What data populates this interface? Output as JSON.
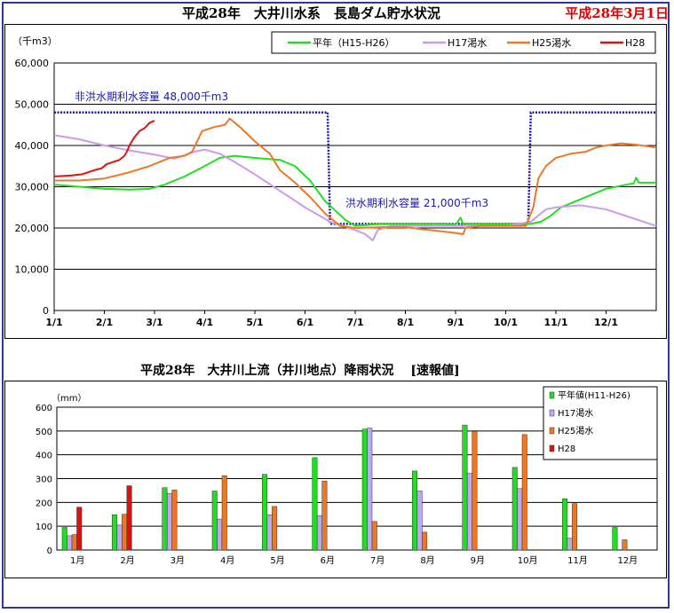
{
  "header": {
    "title": "平成28年　大井川水系　長島ダム貯水状況",
    "date": "平成28年3月1日",
    "title2": "平成28年　大井川上流（井川地点）降雨状況　 [速報値]"
  },
  "chart_data": [
    {
      "type": "line",
      "title": "平成28年　大井川水系　長島ダム貯水状況",
      "ylabel": "（千m3）",
      "ylim": [
        0,
        60000
      ],
      "yticks": [
        "0",
        "10,000",
        "20,000",
        "30,000",
        "40,000",
        "50,000",
        "60,000"
      ],
      "xlim": [
        0,
        12
      ],
      "xticks": [
        "1/1",
        "2/1",
        "3/1",
        "4/1",
        "5/1",
        "6/1",
        "7/1",
        "8/1",
        "9/1",
        "10/1",
        "11/1",
        "12/1"
      ],
      "grid": true,
      "legend": "top-right",
      "annotations": [
        "非洪水期利水容量 48,000千m3",
        "洪水期利水容量 21,000千m3"
      ],
      "capacity_line": {
        "color": "#1a1aa8",
        "points": [
          [
            0,
            48000
          ],
          [
            5.45,
            48000
          ],
          [
            5.5,
            21000
          ],
          [
            9.45,
            21000
          ],
          [
            9.5,
            48000
          ],
          [
            12,
            48000
          ]
        ]
      },
      "series": [
        {
          "name": "平年（H15-H26）",
          "color": "#22dd22",
          "points": [
            [
              0,
              30500
            ],
            [
              0.5,
              30000
            ],
            [
              1,
              29500
            ],
            [
              1.5,
              29300
            ],
            [
              1.9,
              29500
            ],
            [
              2.2,
              30500
            ],
            [
              2.6,
              32500
            ],
            [
              3,
              35000
            ],
            [
              3.3,
              37000
            ],
            [
              3.6,
              37500
            ],
            [
              4,
              37000
            ],
            [
              4.5,
              36500
            ],
            [
              4.8,
              35000
            ],
            [
              5.1,
              31500
            ],
            [
              5.4,
              26500
            ],
            [
              5.8,
              22000
            ],
            [
              6,
              20500
            ],
            [
              6.5,
              21000
            ],
            [
              7,
              21000
            ],
            [
              7.5,
              21000
            ],
            [
              7.8,
              21000
            ],
            [
              8,
              20800
            ],
            [
              8.1,
              22500
            ],
            [
              8.15,
              21000
            ],
            [
              8.5,
              21000
            ],
            [
              9,
              21000
            ],
            [
              9.5,
              21000
            ],
            [
              9.7,
              21500
            ],
            [
              9.9,
              23000
            ],
            [
              10.1,
              25000
            ],
            [
              10.5,
              27000
            ],
            [
              11,
              29500
            ],
            [
              11.4,
              30500
            ],
            [
              11.55,
              30800
            ],
            [
              11.6,
              32200
            ],
            [
              11.65,
              31000
            ],
            [
              12,
              31000
            ]
          ]
        },
        {
          "name": "H17渇水",
          "color": "#cc99ee",
          "points": [
            [
              0,
              42500
            ],
            [
              0.5,
              41500
            ],
            [
              1,
              40000
            ],
            [
              1.5,
              38800
            ],
            [
              2,
              37800
            ],
            [
              2.4,
              36800
            ],
            [
              2.8,
              38500
            ],
            [
              3,
              39000
            ],
            [
              3.3,
              38000
            ],
            [
              3.6,
              36000
            ],
            [
              4,
              33000
            ],
            [
              4.5,
              29000
            ],
            [
              5,
              25000
            ],
            [
              5.5,
              21500
            ],
            [
              6,
              19500
            ],
            [
              6.2,
              18500
            ],
            [
              6.35,
              17000
            ],
            [
              6.45,
              19500
            ],
            [
              6.7,
              20500
            ],
            [
              7,
              20500
            ],
            [
              7.5,
              20500
            ],
            [
              8,
              20500
            ],
            [
              8.5,
              20500
            ],
            [
              9,
              20500
            ],
            [
              9.5,
              21500
            ],
            [
              9.8,
              24500
            ],
            [
              10,
              25000
            ],
            [
              10.5,
              25500
            ],
            [
              11,
              24500
            ],
            [
              11.5,
              22500
            ],
            [
              12,
              20500
            ]
          ]
        },
        {
          "name": "H25渇水",
          "color": "#ee7722",
          "points": [
            [
              0,
              31500
            ],
            [
              0.5,
              31500
            ],
            [
              1,
              32000
            ],
            [
              1.5,
              33500
            ],
            [
              1.9,
              35000
            ],
            [
              2.3,
              37000
            ],
            [
              2.6,
              37500
            ],
            [
              2.75,
              38500
            ],
            [
              2.85,
              41000
            ],
            [
              2.95,
              43500
            ],
            [
              3.2,
              44500
            ],
            [
              3.4,
              45000
            ],
            [
              3.5,
              46500
            ],
            [
              3.7,
              44500
            ],
            [
              4,
              41000
            ],
            [
              4.3,
              38000
            ],
            [
              4.5,
              34000
            ],
            [
              4.8,
              31000
            ],
            [
              5.1,
              27500
            ],
            [
              5.4,
              23500
            ],
            [
              5.7,
              20500
            ],
            [
              6,
              20000
            ],
            [
              6.5,
              20200
            ],
            [
              7,
              20200
            ],
            [
              7.5,
              19500
            ],
            [
              8,
              18800
            ],
            [
              8.15,
              18500
            ],
            [
              8.2,
              20000
            ],
            [
              8.5,
              20500
            ],
            [
              9,
              20500
            ],
            [
              9.4,
              20500
            ],
            [
              9.55,
              25000
            ],
            [
              9.65,
              32000
            ],
            [
              9.8,
              35000
            ],
            [
              10,
              37000
            ],
            [
              10.3,
              38000
            ],
            [
              10.6,
              38500
            ],
            [
              10.8,
              39500
            ],
            [
              11,
              40000
            ],
            [
              11.3,
              40500
            ],
            [
              11.6,
              40200
            ],
            [
              12,
              39500
            ]
          ]
        },
        {
          "name": "H28",
          "color": "#dd1111",
          "points": [
            [
              0,
              32500
            ],
            [
              0.3,
              32700
            ],
            [
              0.55,
              33000
            ],
            [
              0.8,
              34000
            ],
            [
              0.95,
              34500
            ],
            [
              1.05,
              35500
            ],
            [
              1.3,
              36500
            ],
            [
              1.4,
              37500
            ],
            [
              1.45,
              38500
            ],
            [
              1.5,
              40000
            ],
            [
              1.6,
              42000
            ],
            [
              1.7,
              43500
            ],
            [
              1.8,
              44200
            ],
            [
              1.85,
              44800
            ],
            [
              1.9,
              45500
            ],
            [
              2.0,
              46000
            ]
          ]
        }
      ]
    },
    {
      "type": "bar",
      "title": "平成28年　大井川上流（井川地点）降雨状況　 [速報値]",
      "ylabel": "（mm）",
      "ylim": [
        0,
        600
      ],
      "yticks": [
        "0",
        "100",
        "200",
        "300",
        "400",
        "500",
        "600"
      ],
      "categories": [
        "1月",
        "2月",
        "3月",
        "4月",
        "5月",
        "6月",
        "7月",
        "8月",
        "9月",
        "10月",
        "11月",
        "12月"
      ],
      "grid": true,
      "legend": "top-right",
      "series": [
        {
          "name": "平年値(H11-H26)",
          "color": "#22dd22",
          "values": [
            95,
            148,
            262,
            248,
            318,
            388,
            508,
            332,
            525,
            347,
            215,
            95
          ]
        },
        {
          "name": "H17渇水",
          "color": "#bbaaee",
          "values": [
            60,
            105,
            238,
            130,
            148,
            145,
            512,
            248,
            322,
            258,
            50,
            0
          ]
        },
        {
          "name": "H25渇水",
          "color": "#ee7722",
          "values": [
            65,
            150,
            252,
            312,
            183,
            290,
            120,
            75,
            498,
            485,
            195,
            43
          ]
        },
        {
          "name": "H28",
          "color": "#dd1111",
          "values": [
            180,
            270,
            null,
            null,
            null,
            null,
            null,
            null,
            null,
            null,
            null,
            null
          ]
        }
      ]
    }
  ]
}
